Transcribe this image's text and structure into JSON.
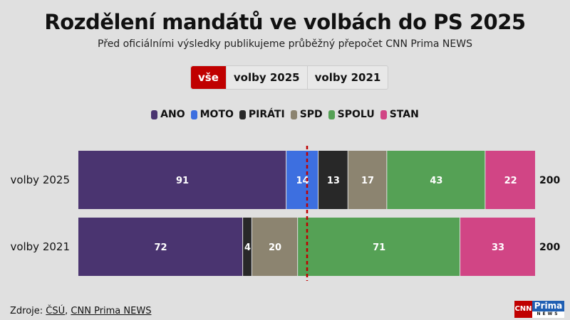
{
  "title": "Rozdělení mandátů ve volbách do PS 2025",
  "subtitle": "Před oficiálními výsledky publikujeme průběžný přepočet CNN Prima NEWS",
  "tabs": [
    {
      "label": "vše",
      "active": true
    },
    {
      "label": "volby 2025"
    },
    {
      "label": "volby 2021"
    }
  ],
  "source": {
    "prefix": "Zdroje: ",
    "links": [
      "ČSÚ",
      "CNN Prima NEWS"
    ],
    "sep": ", "
  },
  "logo": {
    "cnn": "CNN",
    "prima": "Prima",
    "news": "NEWS"
  },
  "chart_data": {
    "type": "bar",
    "orientation": "horizontal",
    "stacked": true,
    "categories": [
      "volby 2025",
      "volby 2021"
    ],
    "totals": [
      200,
      200
    ],
    "xlim": [
      0,
      200
    ],
    "majority_line": 100,
    "majority_line_color": "#c00000",
    "legend_position": "top",
    "series": [
      {
        "name": "ANO",
        "color": "#4a3470",
        "values": [
          91,
          72
        ]
      },
      {
        "name": "MOTO",
        "color": "#3d6fe0",
        "values": [
          14,
          0
        ]
      },
      {
        "name": "PIRÁTI",
        "color": "#282828",
        "values": [
          13,
          4
        ]
      },
      {
        "name": "SPD",
        "color": "#8c8470",
        "values": [
          17,
          20
        ]
      },
      {
        "name": "SPOLU",
        "color": "#55a155",
        "values": [
          43,
          71
        ]
      },
      {
        "name": "STAN",
        "color": "#d14585",
        "values": [
          22,
          33
        ]
      }
    ]
  }
}
